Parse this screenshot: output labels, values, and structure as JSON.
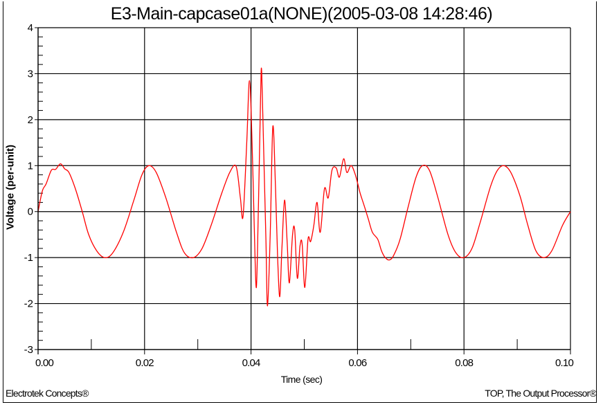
{
  "chart_data": {
    "type": "line",
    "title": "E3-Main-capcase01a(NONE)(2005-03-08 14:28:46)",
    "xlabel": "Time (sec)",
    "ylabel": "Voltage (per-unit)",
    "xlim": [
      0.0,
      0.1
    ],
    "ylim": [
      -3,
      4
    ],
    "x_ticks": [
      "0.00",
      "0.02",
      "0.04",
      "0.06",
      "0.08",
      "0.10"
    ],
    "y_ticks": [
      "4",
      "3",
      "2",
      "1",
      "0",
      "-1",
      "-2",
      "-3"
    ],
    "grid": true,
    "legend": null,
    "series": [
      {
        "name": "Voltage",
        "color": "#ff0000",
        "description": "60 Hz sinusoid (~1 pu peak) with capacitor-switching transient near t=0.037-0.058 s, peaks ~3.05 pu, troughs ~-2.05 pu",
        "points": [
          [
            0.0,
            0.0
          ],
          [
            0.0008,
            0.45
          ],
          [
            0.0015,
            0.6
          ],
          [
            0.0025,
            0.9
          ],
          [
            0.0033,
            0.92
          ],
          [
            0.0042,
            1.04
          ],
          [
            0.005,
            0.93
          ],
          [
            0.0058,
            0.85
          ],
          [
            0.007,
            0.5
          ],
          [
            0.0083,
            0.0
          ],
          [
            0.0095,
            -0.5
          ],
          [
            0.011,
            -0.85
          ],
          [
            0.0125,
            -1.0
          ],
          [
            0.014,
            -0.9
          ],
          [
            0.016,
            -0.45
          ],
          [
            0.018,
            0.25
          ],
          [
            0.0195,
            0.8
          ],
          [
            0.0208,
            1.0
          ],
          [
            0.0222,
            0.85
          ],
          [
            0.024,
            0.3
          ],
          [
            0.026,
            -0.45
          ],
          [
            0.0275,
            -0.9
          ],
          [
            0.0292,
            -1.0
          ],
          [
            0.0308,
            -0.8
          ],
          [
            0.0325,
            -0.3
          ],
          [
            0.0345,
            0.4
          ],
          [
            0.036,
            0.85
          ],
          [
            0.0372,
            0.98
          ],
          [
            0.038,
            0.3
          ],
          [
            0.0385,
            -0.1
          ],
          [
            0.0392,
            1.5
          ],
          [
            0.0397,
            2.85
          ],
          [
            0.0402,
            1.5
          ],
          [
            0.0406,
            -0.3
          ],
          [
            0.041,
            -1.65
          ],
          [
            0.0414,
            0.2
          ],
          [
            0.0418,
            2.5
          ],
          [
            0.042,
            3.05
          ],
          [
            0.0424,
            1.2
          ],
          [
            0.0428,
            -0.6
          ],
          [
            0.0431,
            -2.05
          ],
          [
            0.0436,
            -0.5
          ],
          [
            0.0441,
            1.85
          ],
          [
            0.0446,
            0.5
          ],
          [
            0.045,
            -1.0
          ],
          [
            0.0454,
            -1.85
          ],
          [
            0.0458,
            -0.8
          ],
          [
            0.0463,
            0.25
          ],
          [
            0.0468,
            -0.7
          ],
          [
            0.0472,
            -1.55
          ],
          [
            0.0478,
            -0.5
          ],
          [
            0.0482,
            -0.4
          ],
          [
            0.0487,
            -1.45
          ],
          [
            0.0492,
            -0.75
          ],
          [
            0.0496,
            -0.7
          ],
          [
            0.0501,
            -1.65
          ],
          [
            0.0507,
            -0.6
          ],
          [
            0.0512,
            -0.65
          ],
          [
            0.0518,
            -0.3
          ],
          [
            0.0524,
            0.2
          ],
          [
            0.053,
            -0.45
          ],
          [
            0.0538,
            0.5
          ],
          [
            0.0545,
            0.3
          ],
          [
            0.0552,
            0.9
          ],
          [
            0.056,
            0.95
          ],
          [
            0.0566,
            0.75
          ],
          [
            0.0574,
            1.15
          ],
          [
            0.058,
            0.85
          ],
          [
            0.0588,
            1.0
          ],
          [
            0.0596,
            0.8
          ],
          [
            0.0605,
            0.4
          ],
          [
            0.0612,
            0.15
          ],
          [
            0.062,
            -0.15
          ],
          [
            0.0628,
            -0.45
          ],
          [
            0.0638,
            -0.6
          ],
          [
            0.0645,
            -0.85
          ],
          [
            0.0652,
            -1.0
          ],
          [
            0.066,
            -1.05
          ],
          [
            0.0668,
            -0.95
          ],
          [
            0.068,
            -0.6
          ],
          [
            0.0695,
            0.1
          ],
          [
            0.071,
            0.75
          ],
          [
            0.0722,
            1.0
          ],
          [
            0.0735,
            0.9
          ],
          [
            0.075,
            0.35
          ],
          [
            0.077,
            -0.5
          ],
          [
            0.0785,
            -0.9
          ],
          [
            0.08,
            -1.0
          ],
          [
            0.0815,
            -0.8
          ],
          [
            0.083,
            -0.25
          ],
          [
            0.085,
            0.55
          ],
          [
            0.0863,
            0.9
          ],
          [
            0.0875,
            1.0
          ],
          [
            0.0888,
            0.85
          ],
          [
            0.0905,
            0.35
          ],
          [
            0.092,
            -0.3
          ],
          [
            0.0935,
            -0.85
          ],
          [
            0.095,
            -1.0
          ],
          [
            0.0965,
            -0.85
          ],
          [
            0.0985,
            -0.3
          ],
          [
            0.1,
            0.0
          ]
        ]
      }
    ]
  },
  "footer": {
    "left": "Electrotek Concepts®",
    "right": "TOP, The Output Processor®"
  },
  "colors": {
    "trace": "#ff0000",
    "grid": "#000000",
    "background": "#ffffff"
  }
}
